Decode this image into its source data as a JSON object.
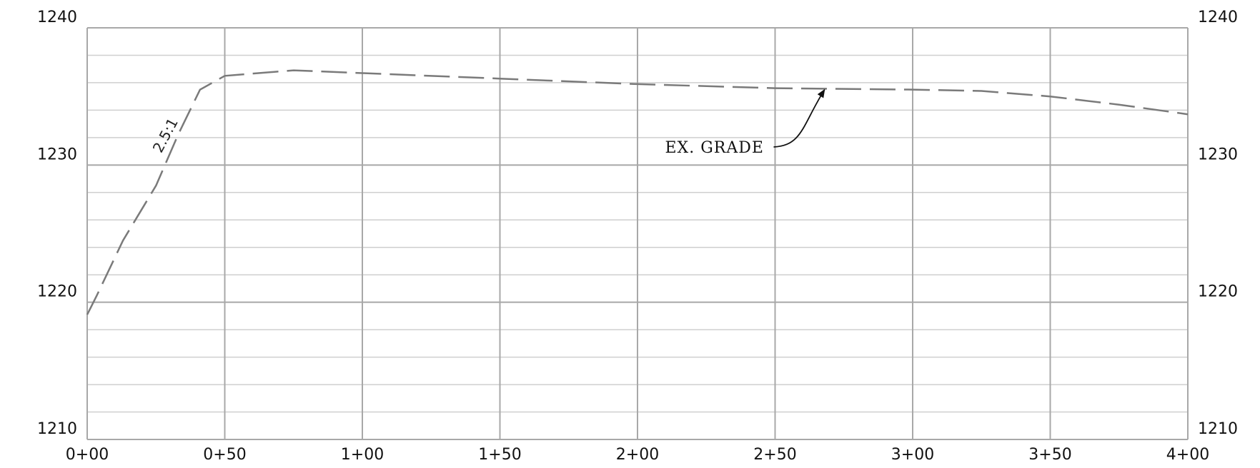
{
  "chart_data": {
    "type": "line",
    "title": "",
    "xlabel": "",
    "ylabel": "",
    "xlim": [
      0,
      400
    ],
    "ylim": [
      1210,
      1240
    ],
    "x_ticks": [
      {
        "value": 0,
        "label": "0+00"
      },
      {
        "value": 50,
        "label": "0+50"
      },
      {
        "value": 100,
        "label": "1+00"
      },
      {
        "value": 150,
        "label": "1+50"
      },
      {
        "value": 200,
        "label": "2+00"
      },
      {
        "value": 250,
        "label": "2+50"
      },
      {
        "value": 300,
        "label": "3+00"
      },
      {
        "value": 350,
        "label": "3+50"
      },
      {
        "value": 400,
        "label": "4+00"
      }
    ],
    "y_ticks": [
      {
        "value": 1210,
        "label": "1210"
      },
      {
        "value": 1220,
        "label": "1220"
      },
      {
        "value": 1230,
        "label": "1230"
      },
      {
        "value": 1240,
        "label": "1240"
      }
    ],
    "grid": true,
    "minor_y_step": 2,
    "series": [
      {
        "name": "EX. GRADE",
        "style": "dashed",
        "color": "#7a7a7a",
        "points": [
          [
            0,
            1219.1
          ],
          [
            3.5,
            1220.5
          ],
          [
            13,
            1224.5
          ],
          [
            25,
            1228.5
          ],
          [
            33,
            1232.2
          ],
          [
            41,
            1235.5
          ],
          [
            50,
            1236.5
          ],
          [
            75,
            1236.9
          ],
          [
            100,
            1236.7
          ],
          [
            150,
            1236.3
          ],
          [
            200,
            1235.9
          ],
          [
            250,
            1235.6
          ],
          [
            300,
            1235.5
          ],
          [
            325,
            1235.4
          ],
          [
            350,
            1235.0
          ],
          [
            375,
            1234.4
          ],
          [
            400,
            1233.7
          ]
        ]
      }
    ],
    "annotations": [
      {
        "text": "EX. GRADE",
        "x": 210,
        "y": 1230.9,
        "arrow_to": [
          268,
          1235.5
        ]
      },
      {
        "text": "2.5:1",
        "x": 30,
        "y": 1232,
        "rotation": -62
      }
    ]
  },
  "colors": {
    "major_grid": "#a8a8a8",
    "minor_grid": "#cfcfcf",
    "series": "#7a7a7a",
    "text": "#111111"
  }
}
